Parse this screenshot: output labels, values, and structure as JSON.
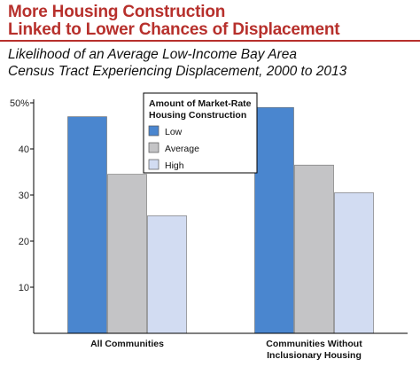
{
  "header": {
    "title_line1": "More Housing Construction",
    "title_line2": "Linked to Lower Chances of Displacement",
    "subtitle_line1": "Likelihood of an Average Low-Income Bay Area",
    "subtitle_line2": "Census Tract Experiencing Displacement, 2000 to 2013"
  },
  "colors": {
    "title": "#b7302c",
    "Low": "#4a86cf",
    "Average": "#c4c4c6",
    "High": "#d2dcf2"
  },
  "chart_data": {
    "type": "bar",
    "title": "Likelihood of an Average Low-Income Bay Area Census Tract Experiencing Displacement, 2000 to 2013",
    "categories": [
      [
        "All Communities"
      ],
      [
        "Communities Without",
        "Inclusionary Housing"
      ]
    ],
    "series": [
      {
        "name": "Low",
        "values": [
          47,
          49
        ]
      },
      {
        "name": "Average",
        "values": [
          34.5,
          36.5
        ]
      },
      {
        "name": "High",
        "values": [
          25.5,
          30.5
        ]
      }
    ],
    "legend_title": [
      "Amount of Market-Rate",
      "Housing Construction"
    ],
    "legend_position": "top-center",
    "ylim": [
      0,
      50
    ],
    "yticks": [
      10,
      20,
      30,
      40,
      50
    ],
    "ytick_labels": [
      "10",
      "20",
      "30",
      "40",
      "50%"
    ],
    "grid": false
  }
}
